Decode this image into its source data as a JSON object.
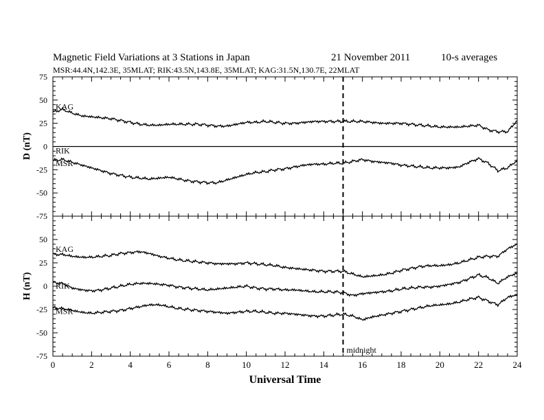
{
  "header": {
    "title": "Magnetic Field Variations at 3 Stations in Japan",
    "date": "21 November 2011",
    "averaging": "10-s averages",
    "subtitle": "MSR:44.4N,142.3E, 35MLAT;  RIK:43.5N,143.8E, 35MLAT;  KAG:31.5N,130.7E, 22MLAT"
  },
  "chart_data": [
    {
      "type": "line",
      "panel": "top",
      "ylabel": "D (nT)",
      "ylim": [
        -75,
        75
      ],
      "yticks": [
        -75,
        -50,
        -25,
        0,
        25,
        50,
        75
      ],
      "xlim": [
        0,
        24
      ],
      "x": [
        0,
        0.5,
        1,
        1.5,
        2,
        2.5,
        3,
        3.5,
        4,
        4.5,
        5,
        5.5,
        6,
        6.5,
        7,
        7.5,
        8,
        8.5,
        9,
        9.5,
        10,
        10.5,
        11,
        11.5,
        12,
        12.5,
        13,
        13.5,
        14,
        14.5,
        15,
        15.5,
        16,
        16.5,
        17,
        17.5,
        18,
        18.5,
        19,
        19.5,
        20,
        20.5,
        21,
        21.5,
        22,
        22.5,
        23,
        23.5,
        24
      ],
      "series": [
        {
          "name": "KAG",
          "values": [
            37,
            40,
            36,
            33,
            32,
            31,
            30,
            28,
            26,
            24,
            23,
            23,
            24,
            24,
            24,
            24,
            23,
            22,
            22,
            24,
            26,
            26,
            27,
            26,
            25,
            25,
            26,
            27,
            27,
            27,
            27,
            27,
            27,
            26,
            25,
            25,
            25,
            24,
            23,
            22,
            21,
            21,
            21,
            22,
            23,
            18,
            16,
            16,
            28
          ]
        },
        {
          "name": "RIK",
          "values": [
            0,
            0,
            0,
            0,
            0,
            0,
            0,
            0,
            0,
            0,
            0,
            0,
            0,
            0,
            0,
            0,
            0,
            0,
            0,
            0,
            0,
            0,
            0,
            0,
            0,
            0,
            0,
            0,
            0,
            0,
            0,
            0,
            0,
            0,
            0,
            0,
            0,
            0,
            0,
            0,
            0,
            0,
            0,
            0,
            0,
            0,
            0,
            0,
            0
          ]
        },
        {
          "name": "MSR",
          "values": [
            -15,
            -14,
            -17,
            -20,
            -23,
            -26,
            -29,
            -31,
            -33,
            -34,
            -35,
            -34,
            -33,
            -35,
            -37,
            -38,
            -39,
            -39,
            -36,
            -33,
            -30,
            -28,
            -27,
            -25,
            -24,
            -22,
            -20,
            -19,
            -19,
            -18,
            -18,
            -16,
            -14,
            -16,
            -17,
            -18,
            -20,
            -21,
            -22,
            -23,
            -23,
            -23,
            -22,
            -17,
            -13,
            -18,
            -26,
            -23,
            -15
          ]
        }
      ],
      "annotations": [
        {
          "text": "midnight",
          "x": 15
        }
      ]
    },
    {
      "type": "line",
      "panel": "bottom",
      "ylabel": "H (nT)",
      "xlabel": "Universal Time",
      "ylim": [
        -75,
        75
      ],
      "yticks": [
        -75,
        -50,
        -25,
        0,
        25,
        50
      ],
      "xlim": [
        0,
        24
      ],
      "xticks": [
        0,
        2,
        4,
        6,
        8,
        10,
        12,
        14,
        16,
        18,
        20,
        22,
        24
      ],
      "x": [
        0,
        0.5,
        1,
        1.5,
        2,
        2.5,
        3,
        3.5,
        4,
        4.5,
        5,
        5.5,
        6,
        6.5,
        7,
        7.5,
        8,
        8.5,
        9,
        9.5,
        10,
        10.5,
        11,
        11.5,
        12,
        12.5,
        13,
        13.5,
        14,
        14.5,
        15,
        15.5,
        16,
        16.5,
        17,
        17.5,
        18,
        18.5,
        19,
        19.5,
        20,
        20.5,
        21,
        21.5,
        22,
        22.5,
        23,
        23.5,
        24
      ],
      "series": [
        {
          "name": "KAG",
          "values": [
            34,
            34,
            32,
            31,
            31,
            32,
            33,
            35,
            36,
            37,
            35,
            32,
            30,
            28,
            27,
            26,
            25,
            24,
            24,
            24,
            25,
            24,
            23,
            22,
            20,
            19,
            18,
            17,
            16,
            16,
            16,
            13,
            10,
            11,
            12,
            14,
            17,
            19,
            21,
            22,
            22,
            23,
            25,
            28,
            31,
            32,
            32,
            40,
            45
          ]
        },
        {
          "name": "RIK",
          "values": [
            4,
            3,
            -2,
            -4,
            -5,
            -4,
            -2,
            0,
            2,
            3,
            3,
            2,
            1,
            -1,
            -2,
            -3,
            -4,
            -3,
            -2,
            -1,
            0,
            -2,
            -3,
            -3,
            -4,
            -4,
            -5,
            -6,
            -6,
            -6,
            -7,
            -10,
            -8,
            -7,
            -6,
            -5,
            -3,
            -2,
            -1,
            -1,
            0,
            2,
            4,
            8,
            12,
            9,
            3,
            10,
            14
          ]
        },
        {
          "name": "MSR",
          "values": [
            -23,
            -24,
            -26,
            -28,
            -29,
            -28,
            -27,
            -26,
            -24,
            -22,
            -20,
            -20,
            -22,
            -24,
            -25,
            -26,
            -27,
            -28,
            -29,
            -28,
            -27,
            -27,
            -28,
            -29,
            -29,
            -30,
            -31,
            -32,
            -32,
            -31,
            -30,
            -32,
            -36,
            -33,
            -31,
            -29,
            -27,
            -25,
            -23,
            -21,
            -20,
            -19,
            -17,
            -14,
            -12,
            -16,
            -20,
            -12,
            -9
          ]
        }
      ],
      "annotations": [
        {
          "text": "midnight",
          "x": 15
        }
      ]
    }
  ]
}
